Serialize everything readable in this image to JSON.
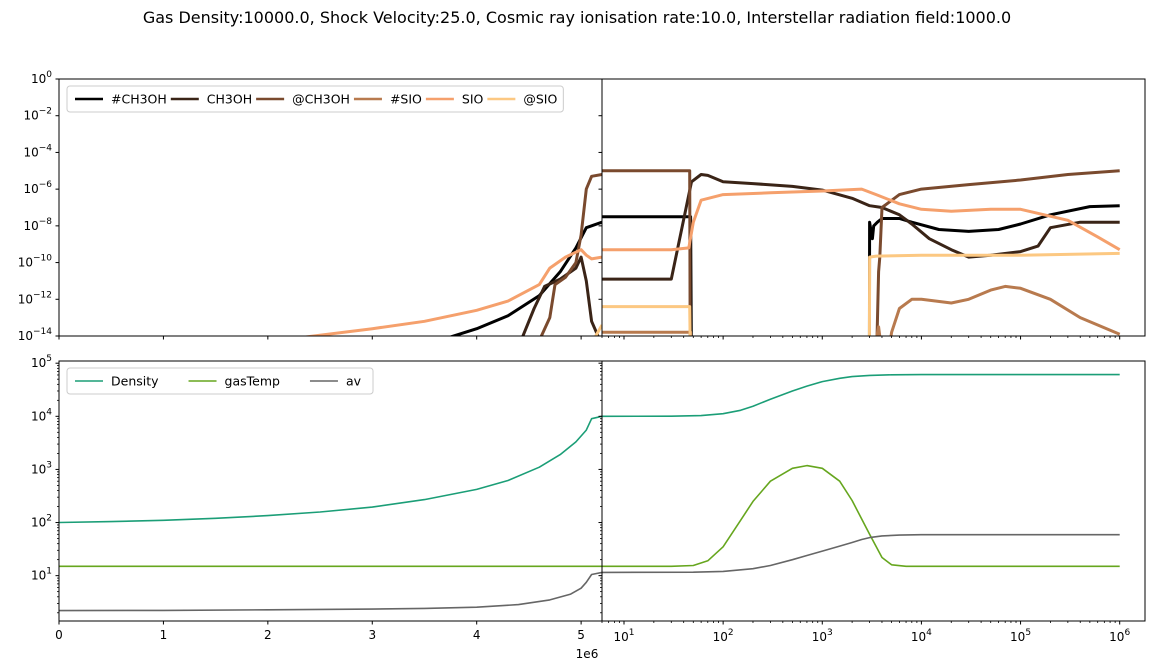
{
  "figure": {
    "title": "Gas Density:10000.0, Shock Velocity:25.0, Cosmic ray ionisation rate:10.0, Interstellar radiation field:1000.0",
    "offset_label": "1e6"
  },
  "chart_data": [
    {
      "id": "abundance-left",
      "type": "line",
      "xscale": "linear",
      "yscale": "log",
      "xlim": [
        0,
        5200000.0
      ],
      "ylim": [
        1e-14,
        1
      ],
      "yticks": [
        {
          "base": "10",
          "exp": "0",
          "value": 0
        },
        {
          "base": "10",
          "exp": "−2",
          "value": -2
        },
        {
          "base": "10",
          "exp": "−4",
          "value": -4
        },
        {
          "base": "10",
          "exp": "−6",
          "value": -6
        },
        {
          "base": "10",
          "exp": "−8",
          "value": -8
        },
        {
          "base": "10",
          "exp": "−10",
          "value": -10
        },
        {
          "base": "10",
          "exp": "−12",
          "value": -12
        },
        {
          "base": "10",
          "exp": "−14",
          "value": -14
        }
      ],
      "legend": {
        "placement": "upper-left",
        "ncol": 6
      },
      "series": [
        {
          "name": "#CH3OH",
          "color": "#000000",
          "x": [
            2300000.0,
            3000000.0,
            3500000.0,
            4000000.0,
            4300000.0,
            4600000.0,
            4800000.0,
            4950000.0,
            5050000.0,
            5200000.0
          ],
          "y": [
            -15.5,
            -15.0,
            -14.5,
            -13.6,
            -12.9,
            -11.8,
            -10.5,
            -9.2,
            -8.1,
            -7.8
          ]
        },
        {
          "name": "CH3OH",
          "color": "#3a2417",
          "x": [
            4300000.0,
            4550000.0,
            4650000.0,
            4800000.0,
            4950000.0,
            5000000.0,
            5050000.0,
            5100000.0,
            5200000.0
          ],
          "y": [
            -16,
            -12.5,
            -11.3,
            -10.9,
            -10.3,
            -9.7,
            -11.0,
            -13.2,
            -14.5
          ]
        },
        {
          "name": "@CH3OH",
          "color": "#7a4a2e",
          "x": [
            4550000.0,
            4620000.0,
            4700000.0,
            4750000.0,
            4850000.0,
            4950000.0,
            5000000.0,
            5050000.0,
            5100000.0,
            5200000.0
          ],
          "y": [
            -14.5,
            -14.0,
            -13.0,
            -11.2,
            -10.8,
            -10.0,
            -8.5,
            -6.0,
            -5.3,
            -5.2
          ]
        },
        {
          "name": "#SIO",
          "color": "#b87a4e",
          "x": [
            5150000.0,
            5200000.0
          ],
          "y": [
            -14.5,
            -14.0
          ]
        },
        {
          "name": "SIO",
          "color": "#f5a06c",
          "x": [
            2300000.0,
            3000000.0,
            3500000.0,
            4000000.0,
            4300000.0,
            4600000.0,
            4700000.0,
            4850000.0,
            5000000.0,
            5050000.0,
            5100000.0,
            5200000.0
          ],
          "y": [
            -14.1,
            -13.6,
            -13.2,
            -12.6,
            -12.1,
            -11.2,
            -10.3,
            -9.7,
            -9.3,
            -9.6,
            -9.8,
            -9.7
          ]
        },
        {
          "name": "@SIO",
          "color": "#fcc882",
          "x": [
            5120000.0,
            5200000.0
          ],
          "y": [
            -14.2,
            -13.4
          ]
        }
      ]
    },
    {
      "id": "abundance-right",
      "type": "line",
      "xscale": "log",
      "yscale": "log",
      "xlim": [
        6,
        1800000.0
      ],
      "ylim": [
        1e-14,
        1
      ],
      "series": [
        {
          "name": "#CH3OH",
          "color": "#000000",
          "x": [
            6,
            10,
            30,
            47,
            48,
            100,
            500,
            1000,
            2000,
            2990,
            3000,
            3200,
            3300,
            3600,
            4000,
            6000,
            8000,
            15000.0,
            30000.0,
            60000.0,
            100000.0,
            200000.0,
            500000.0,
            1000000.0
          ],
          "y": [
            -7.5,
            -7.5,
            -7.5,
            -7.5,
            -16,
            -16,
            -16,
            -16,
            -16,
            -16,
            -7.8,
            -8.7,
            -8.0,
            -7.8,
            -7.6,
            -7.6,
            -7.8,
            -8.2,
            -8.3,
            -8.2,
            -7.9,
            -7.4,
            -6.95,
            -6.9
          ]
        },
        {
          "name": "CH3OH",
          "color": "#3a2417",
          "x": [
            6,
            10,
            20,
            30,
            48,
            60,
            70,
            100,
            200,
            500,
            1000,
            2000,
            3000,
            4000,
            6000,
            8000,
            12000.0,
            20000.0,
            30000.0,
            50000.0,
            100000.0,
            150000.0,
            200000.0,
            400000.0,
            1000000.0
          ],
          "y": [
            -10.9,
            -10.9,
            -10.9,
            -10.9,
            -5.6,
            -5.2,
            -5.25,
            -5.6,
            -5.7,
            -5.85,
            -6.05,
            -6.5,
            -6.9,
            -7.0,
            -7.4,
            -7.9,
            -8.7,
            -9.3,
            -9.7,
            -9.6,
            -9.4,
            -9.1,
            -8.1,
            -7.8,
            -7.8
          ]
        },
        {
          "name": "@CH3OH",
          "color": "#7a4a2e",
          "x": [
            6,
            10,
            30,
            46,
            46.5,
            47,
            48,
            100,
            1000,
            2990,
            3000,
            3500,
            3700,
            3800,
            4000,
            6000,
            10000.0,
            30000.0,
            100000.0,
            300000.0,
            1000000.0
          ],
          "y": [
            -5.0,
            -5.0,
            -5.0,
            -5.0,
            -15,
            -15,
            -16,
            -16,
            -16,
            -16,
            -16,
            -16,
            -10.5,
            -9.7,
            -7.0,
            -6.3,
            -6.0,
            -5.75,
            -5.5,
            -5.2,
            -5.0
          ]
        },
        {
          "name": "#SIO",
          "color": "#b87a4e",
          "x": [
            6,
            10,
            30,
            47,
            48,
            100,
            1000,
            2990,
            3000,
            3200,
            3500,
            3700,
            3900,
            4100,
            4500,
            5000,
            6000,
            8000,
            10000.0,
            20000.0,
            30000.0,
            50000.0,
            70000.0,
            100000.0,
            200000.0,
            400000.0,
            1000000.0
          ],
          "y": [
            -13.8,
            -13.8,
            -13.8,
            -13.8,
            -16,
            -16,
            -16,
            -16,
            -14.5,
            -15.5,
            -14.2,
            -13.5,
            -14.5,
            -15,
            -15.5,
            -13.8,
            -12.5,
            -12.0,
            -12.0,
            -12.2,
            -12.0,
            -11.5,
            -11.3,
            -11.4,
            -12.0,
            -13.0,
            -13.9
          ]
        },
        {
          "name": "SIO",
          "color": "#f5a06c",
          "x": [
            6,
            10,
            30,
            45,
            50,
            60,
            100,
            300,
            1000,
            2500,
            3500,
            6000,
            10000.0,
            20000.0,
            50000.0,
            100000.0,
            300000.0,
            600000.0,
            1000000.0
          ],
          "y": [
            -9.3,
            -9.3,
            -9.3,
            -9.2,
            -7.8,
            -6.6,
            -6.3,
            -6.2,
            -6.1,
            -6.0,
            -6.3,
            -6.8,
            -7.1,
            -7.2,
            -7.1,
            -7.1,
            -7.7,
            -8.6,
            -9.3
          ]
        },
        {
          "name": "@SIO",
          "color": "#fcc882",
          "x": [
            6,
            10,
            30,
            46,
            47,
            100,
            1000,
            2990,
            3000,
            3500,
            10000.0,
            100000.0,
            1000000.0
          ],
          "y": [
            -12.4,
            -12.4,
            -12.4,
            -12.4,
            -16,
            -16,
            -16,
            -16,
            -9.7,
            -9.65,
            -9.6,
            -9.6,
            -9.5
          ]
        }
      ]
    },
    {
      "id": "physics-left",
      "type": "line",
      "xscale": "linear",
      "yscale": "log",
      "xlim": [
        0,
        5200000.0
      ],
      "ylim": [
        1.4,
        110000.0
      ],
      "xticks": [
        "0",
        "1",
        "2",
        "3",
        "4",
        "5"
      ],
      "yticks": [
        {
          "base": "10",
          "exp": "1",
          "value": 1
        },
        {
          "base": "10",
          "exp": "2",
          "value": 2
        },
        {
          "base": "10",
          "exp": "3",
          "value": 3
        },
        {
          "base": "10",
          "exp": "4",
          "value": 4
        },
        {
          "base": "10",
          "exp": "5",
          "value": 5
        }
      ],
      "legend": {
        "placement": "upper-left",
        "ncol": 3
      },
      "series": [
        {
          "name": "Density",
          "color": "#1b9e77",
          "x": [
            0,
            500000.0,
            1000000.0,
            1500000.0,
            2000000.0,
            2500000.0,
            3000000.0,
            3500000.0,
            4000000.0,
            4300000.0,
            4600000.0,
            4800000.0,
            4950000.0,
            5050000.0,
            5100000.0,
            5200000.0
          ],
          "y": [
            100,
            104,
            110,
            120,
            135,
            158,
            195,
            270,
            420,
            620,
            1100,
            1900,
            3300,
            5500,
            9000,
            10000
          ]
        },
        {
          "name": "gasTemp",
          "color": "#66a61e",
          "x": [
            0,
            5200000.0
          ],
          "y": [
            15,
            15
          ]
        },
        {
          "name": "av",
          "color": "#666666",
          "x": [
            0,
            1000000.0,
            2000000.0,
            3000000.0,
            3500000.0,
            4000000.0,
            4400000.0,
            4700000.0,
            4900000.0,
            5000000.0,
            5050000.0,
            5100000.0,
            5200000.0
          ],
          "y": [
            2.2,
            2.22,
            2.28,
            2.35,
            2.42,
            2.55,
            2.85,
            3.5,
            4.5,
            5.8,
            7.5,
            10.5,
            11.5
          ]
        }
      ]
    },
    {
      "id": "physics-right",
      "type": "line",
      "xscale": "log",
      "yscale": "log",
      "xlim": [
        6,
        1800000.0
      ],
      "ylim": [
        1.4,
        110000.0
      ],
      "xticks": [
        {
          "base": "10",
          "exp": "1",
          "value": 1
        },
        {
          "base": "10",
          "exp": "2",
          "value": 2
        },
        {
          "base": "10",
          "exp": "3",
          "value": 3
        },
        {
          "base": "10",
          "exp": "4",
          "value": 4
        },
        {
          "base": "10",
          "exp": "5",
          "value": 5
        },
        {
          "base": "10",
          "exp": "6",
          "value": 6
        }
      ],
      "series": [
        {
          "name": "Density",
          "color": "#1b9e77",
          "x": [
            6,
            30,
            60,
            100,
            150,
            200,
            300,
            500,
            700,
            1000,
            1500,
            2000,
            3000,
            5000,
            10000.0,
            100000.0,
            1000000.0
          ],
          "y": [
            10000,
            10050,
            10300,
            11200,
            13000,
            15500,
            21000,
            30000,
            37000,
            45000,
            52000,
            56000,
            59000,
            60500,
            61000,
            61000,
            61000
          ]
        },
        {
          "name": "gasTemp",
          "color": "#66a61e",
          "x": [
            6,
            30,
            50,
            70,
            100,
            150,
            200,
            300,
            500,
            700,
            1000,
            1500,
            2000,
            3000,
            4000,
            5000,
            7000,
            10000.0,
            100000.0,
            1000000.0
          ],
          "y": [
            15,
            15,
            15.5,
            19,
            35,
            110,
            250,
            600,
            1050,
            1180,
            1050,
            600,
            260,
            60,
            22,
            16,
            15,
            15,
            15,
            15
          ]
        },
        {
          "name": "av",
          "color": "#666666",
          "x": [
            6,
            50,
            100,
            200,
            300,
            500,
            700,
            1000,
            1500,
            2000,
            2500,
            3000,
            4000,
            6000,
            10000.0,
            100000.0,
            1000000.0
          ],
          "y": [
            11.5,
            11.6,
            12,
            13.5,
            15.5,
            20,
            24,
            29,
            36,
            42,
            48,
            52,
            56,
            58,
            59,
            59,
            59
          ]
        }
      ]
    }
  ]
}
